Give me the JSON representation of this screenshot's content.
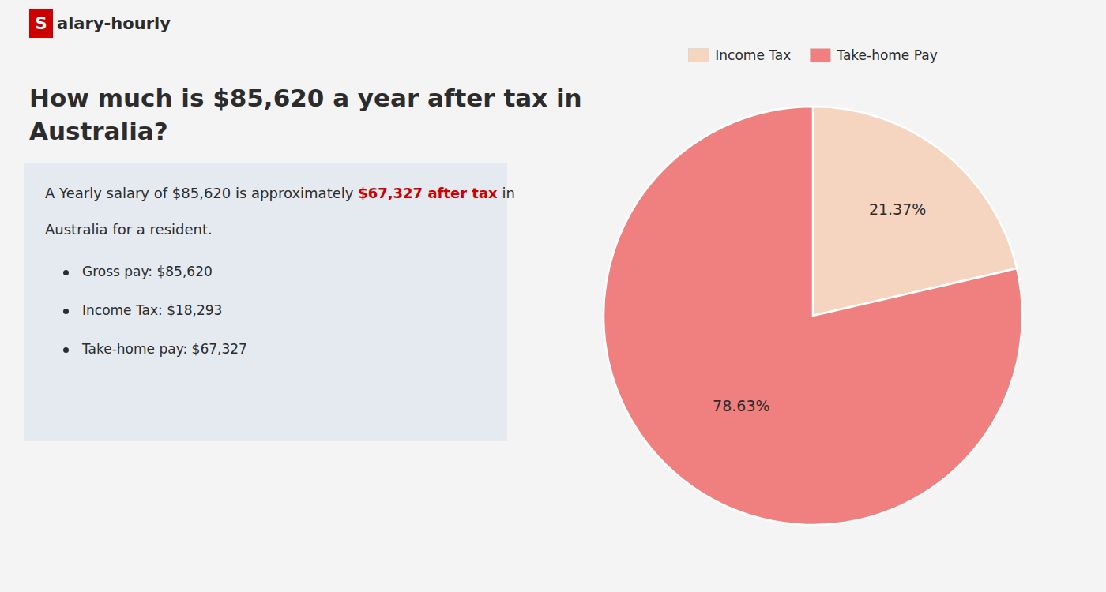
{
  "chart_data": {
    "type": "pie",
    "title": "How much is $85,620 a year after tax in\nAustralia?",
    "categories": [
      "Income Tax",
      "Take-home Pay"
    ],
    "values": [
      21.37,
      78.63
    ],
    "value_labels": [
      "21.37%",
      "78.63%"
    ],
    "colors": [
      "#f5d5c0",
      "#f08080"
    ],
    "data_labels": true,
    "legend": "top",
    "annotations": [
      {
        "text": "S",
        "color": "#cc0000"
      },
      {
        "text": "alary-hourly"
      },
      {
        "text": "A Yearly salary of $85,620 is approximately "
      },
      {
        "text": "$67,327 after tax",
        "color": "#cc0000"
      },
      {
        "text": " in"
      },
      {
        "text": "Australia for a resident."
      },
      {
        "text": "Gross pay: $85,620"
      },
      {
        "text": "Income Tax: $18,293"
      },
      {
        "text": "Take-home pay: $67,327"
      }
    ]
  }
}
